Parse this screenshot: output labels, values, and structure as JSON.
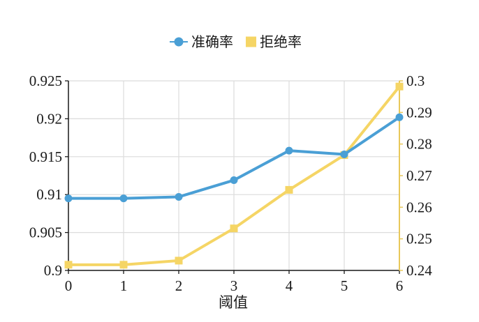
{
  "chart_data": {
    "type": "line",
    "x": [
      0,
      1,
      2,
      3,
      4,
      5,
      6
    ],
    "xlabel": "阈值",
    "xlim": [
      0,
      6
    ],
    "x_ticks": [
      "0",
      "1",
      "2",
      "3",
      "4",
      "5",
      "6"
    ],
    "y_left": {
      "ylim": [
        0.9,
        0.925
      ],
      "ticks": [
        "0.9",
        "0.905",
        "0.91",
        "0.915",
        "0.92",
        "0.925"
      ],
      "axis_color": "#1a1a1a"
    },
    "y_right": {
      "ylim": [
        0.24,
        0.3
      ],
      "ticks": [
        "0.24",
        "0.25",
        "0.26",
        "0.27",
        "0.28",
        "0.29",
        "0.3"
      ],
      "axis_color": "#e8c85a"
    },
    "grid": true,
    "legend_position": "top-center",
    "series": [
      {
        "name": "准确率",
        "axis": "left",
        "marker": "circle",
        "color": "#4a9fd5",
        "values": [
          0.9095,
          0.9095,
          0.9097,
          0.9119,
          0.9158,
          0.9153,
          0.9202
        ]
      },
      {
        "name": "拒绝率",
        "axis": "right",
        "marker": "square",
        "color": "#f5d565",
        "values": [
          0.2418,
          0.2418,
          0.2431,
          0.2533,
          0.2655,
          0.2765,
          0.2982
        ]
      }
    ]
  }
}
